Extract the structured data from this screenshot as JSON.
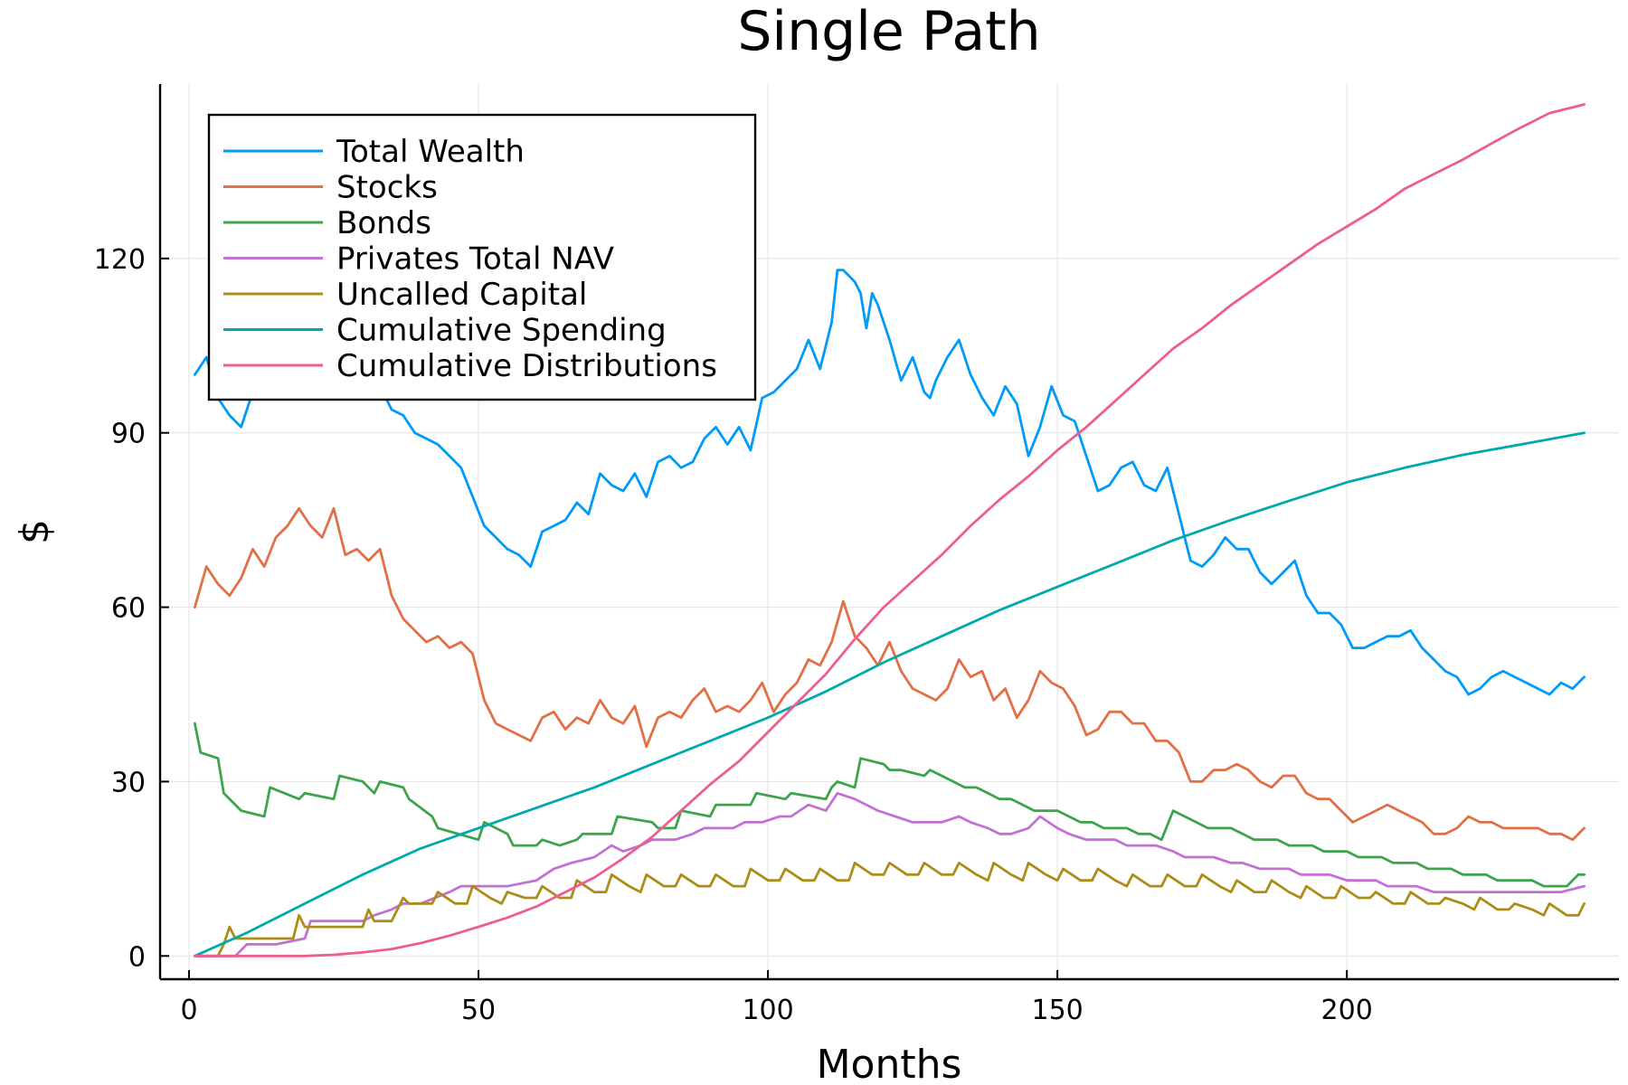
{
  "chart_data": {
    "type": "line",
    "title": "Single Path",
    "xlabel": "Months",
    "ylabel": "$",
    "xlim": [
      -5,
      247
    ],
    "ylim": [
      -4,
      150
    ],
    "xticks": [
      0,
      50,
      100,
      150,
      200
    ],
    "yticks": [
      0,
      30,
      60,
      90,
      120
    ],
    "grid": true,
    "legend_position": "top-left",
    "series": [
      {
        "name": "Total Wealth",
        "color": "#009af9",
        "x": [
          1,
          3,
          5,
          7,
          9,
          11,
          13,
          15,
          17,
          19,
          21,
          23,
          25,
          27,
          29,
          31,
          33,
          35,
          37,
          39,
          41,
          43,
          45,
          47,
          49,
          51,
          53,
          55,
          57,
          59,
          61,
          63,
          65,
          67,
          69,
          71,
          73,
          75,
          77,
          79,
          81,
          83,
          85,
          87,
          89,
          91,
          93,
          95,
          97,
          99,
          101,
          103,
          105,
          107,
          109,
          111,
          112,
          113,
          115,
          116,
          117,
          118,
          119,
          121,
          123,
          125,
          127,
          128,
          129,
          131,
          133,
          135,
          137,
          139,
          141,
          143,
          145,
          147,
          149,
          151,
          153,
          155,
          157,
          159,
          161,
          163,
          165,
          167,
          169,
          171,
          173,
          175,
          177,
          179,
          181,
          183,
          185,
          187,
          189,
          191,
          193,
          195,
          197,
          199,
          201,
          203,
          205,
          207,
          209,
          211,
          213,
          215,
          217,
          219,
          221,
          223,
          225,
          227,
          229,
          231,
          233,
          235,
          237,
          239,
          241
        ],
        "values": [
          100,
          103,
          96,
          93,
          91,
          97,
          99,
          98,
          97,
          99,
          100,
          99,
          98,
          99,
          98,
          97,
          98,
          94,
          93,
          90,
          89,
          88,
          86,
          84,
          79,
          74,
          72,
          70,
          69,
          67,
          73,
          74,
          75,
          78,
          76,
          83,
          81,
          80,
          83,
          79,
          85,
          86,
          84,
          85,
          89,
          91,
          88,
          91,
          87,
          96,
          97,
          99,
          101,
          106,
          101,
          109,
          118,
          118,
          116,
          114,
          108,
          114,
          112,
          106,
          99,
          103,
          97,
          96,
          99,
          103,
          106,
          100,
          96,
          93,
          98,
          95,
          86,
          91,
          98,
          93,
          92,
          86,
          80,
          81,
          84,
          85,
          81,
          80,
          84,
          76,
          68,
          67,
          69,
          72,
          70,
          70,
          66,
          64,
          66,
          68,
          62,
          59,
          59,
          57,
          53,
          53,
          54,
          55,
          55,
          56,
          53,
          51,
          49,
          48,
          45,
          46,
          48,
          49,
          48,
          47,
          46,
          45,
          47,
          46,
          48
        ]
      },
      {
        "name": "Stocks",
        "color": "#e26f46",
        "x": [
          1,
          3,
          5,
          7,
          9,
          11,
          13,
          15,
          17,
          19,
          21,
          23,
          25,
          27,
          29,
          31,
          33,
          35,
          37,
          39,
          41,
          43,
          45,
          47,
          49,
          51,
          53,
          55,
          57,
          59,
          61,
          63,
          65,
          67,
          69,
          71,
          73,
          75,
          77,
          79,
          81,
          83,
          85,
          87,
          89,
          91,
          93,
          95,
          97,
          99,
          101,
          103,
          105,
          107,
          109,
          111,
          113,
          115,
          117,
          119,
          121,
          123,
          125,
          127,
          129,
          131,
          133,
          135,
          137,
          139,
          141,
          143,
          145,
          147,
          149,
          151,
          153,
          155,
          157,
          159,
          161,
          163,
          165,
          167,
          169,
          171,
          173,
          175,
          177,
          179,
          181,
          183,
          185,
          187,
          189,
          191,
          193,
          195,
          197,
          199,
          201,
          203,
          205,
          207,
          209,
          211,
          213,
          215,
          217,
          219,
          221,
          223,
          225,
          227,
          229,
          231,
          233,
          235,
          237,
          239,
          241
        ],
        "values": [
          60,
          67,
          64,
          62,
          65,
          70,
          67,
          72,
          74,
          77,
          74,
          72,
          77,
          69,
          70,
          68,
          70,
          62,
          58,
          56,
          54,
          55,
          53,
          54,
          52,
          44,
          40,
          39,
          38,
          37,
          41,
          42,
          39,
          41,
          40,
          44,
          41,
          40,
          43,
          36,
          41,
          42,
          41,
          44,
          46,
          42,
          43,
          42,
          44,
          47,
          42,
          45,
          47,
          51,
          50,
          54,
          61,
          55,
          53,
          50,
          54,
          49,
          46,
          45,
          44,
          46,
          51,
          48,
          49,
          44,
          46,
          41,
          44,
          49,
          47,
          46,
          43,
          38,
          39,
          42,
          42,
          40,
          40,
          37,
          37,
          35,
          30,
          30,
          32,
          32,
          33,
          32,
          30,
          29,
          31,
          31,
          28,
          27,
          27,
          25,
          23,
          24,
          25,
          26,
          25,
          24,
          23,
          21,
          21,
          22,
          24,
          23,
          23,
          22,
          22,
          22,
          22,
          21,
          21,
          20,
          22
        ]
      },
      {
        "name": "Bonds",
        "color": "#3da44d",
        "x": [
          1,
          2,
          5,
          6,
          7,
          8,
          9,
          13,
          14,
          19,
          20,
          25,
          26,
          30,
          32,
          33,
          37,
          38,
          42,
          43,
          50,
          51,
          55,
          56,
          60,
          61,
          64,
          67,
          68,
          73,
          74,
          80,
          81,
          84,
          85,
          90,
          91,
          97,
          98,
          103,
          104,
          110,
          111,
          112,
          115,
          116,
          120,
          121,
          123,
          127,
          128,
          130,
          132,
          134,
          136,
          138,
          140,
          142,
          144,
          146,
          148,
          150,
          152,
          154,
          156,
          158,
          160,
          162,
          164,
          166,
          168,
          170,
          172,
          174,
          176,
          178,
          180,
          182,
          184,
          186,
          188,
          190,
          192,
          194,
          196,
          198,
          200,
          202,
          204,
          206,
          208,
          210,
          212,
          214,
          216,
          218,
          220,
          222,
          224,
          226,
          228,
          230,
          232,
          234,
          236,
          238,
          240,
          241
        ],
        "values": [
          40,
          35,
          34,
          28,
          27,
          26,
          25,
          24,
          29,
          27,
          28,
          27,
          31,
          30,
          28,
          30,
          29,
          27,
          24,
          22,
          20,
          23,
          21,
          19,
          19,
          20,
          19,
          20,
          21,
          21,
          24,
          23,
          22,
          22,
          25,
          24,
          26,
          26,
          28,
          27,
          28,
          27,
          29,
          30,
          29,
          34,
          33,
          32,
          32,
          31,
          32,
          31,
          30,
          29,
          29,
          28,
          27,
          27,
          26,
          25,
          25,
          25,
          24,
          23,
          23,
          22,
          22,
          22,
          21,
          21,
          20,
          25,
          24,
          23,
          22,
          22,
          22,
          21,
          20,
          20,
          20,
          19,
          19,
          19,
          18,
          18,
          18,
          17,
          17,
          17,
          16,
          16,
          16,
          15,
          15,
          15,
          14,
          14,
          14,
          13,
          13,
          13,
          13,
          12,
          12,
          12,
          14,
          14
        ]
      },
      {
        "name": "Privates Total NAV",
        "color": "#c271d2",
        "x": [
          1,
          5,
          8,
          10,
          15,
          20,
          21,
          25,
          30,
          32,
          35,
          37,
          40,
          45,
          47,
          50,
          55,
          60,
          63,
          66,
          70,
          73,
          75,
          78,
          80,
          84,
          87,
          89,
          92,
          94,
          96,
          99,
          102,
          104,
          107,
          110,
          112,
          115,
          117,
          119,
          122,
          125,
          127,
          130,
          133,
          135,
          138,
          140,
          142,
          145,
          147,
          150,
          152,
          155,
          157,
          160,
          162,
          165,
          167,
          170,
          172,
          175,
          177,
          180,
          182,
          185,
          187,
          190,
          192,
          195,
          197,
          200,
          202,
          205,
          207,
          210,
          212,
          215,
          217,
          220,
          222,
          225,
          227,
          230,
          232,
          235,
          237,
          241
        ],
        "values": [
          0,
          0,
          0,
          2,
          2,
          3,
          6,
          6,
          6,
          7,
          8,
          9,
          9,
          11,
          12,
          12,
          12,
          13,
          15,
          16,
          17,
          19,
          18,
          19,
          20,
          20,
          21,
          22,
          22,
          22,
          23,
          23,
          24,
          24,
          26,
          25,
          28,
          27,
          26,
          25,
          24,
          23,
          23,
          23,
          24,
          23,
          22,
          21,
          21,
          22,
          24,
          22,
          21,
          20,
          20,
          20,
          19,
          19,
          19,
          18,
          17,
          17,
          17,
          16,
          16,
          15,
          15,
          15,
          14,
          14,
          14,
          13,
          13,
          13,
          12,
          12,
          12,
          11,
          11,
          11,
          11,
          11,
          11,
          11,
          11,
          11,
          11,
          12
        ]
      },
      {
        "name": "Uncalled Capital",
        "color": "#ac8d18",
        "x": [
          1,
          5,
          6,
          7,
          8,
          11,
          14,
          18,
          19,
          20,
          23,
          26,
          30,
          31,
          32,
          35,
          37,
          38,
          42,
          43,
          46,
          48,
          49,
          52,
          54,
          55,
          58,
          60,
          61,
          64,
          66,
          67,
          70,
          72,
          73,
          76,
          78,
          79,
          82,
          84,
          85,
          88,
          90,
          91,
          94,
          96,
          97,
          100,
          102,
          103,
          106,
          108,
          109,
          112,
          114,
          115,
          118,
          120,
          121,
          124,
          126,
          127,
          130,
          132,
          133,
          136,
          138,
          139,
          142,
          144,
          145,
          148,
          150,
          151,
          154,
          156,
          157,
          160,
          162,
          163,
          166,
          168,
          169,
          172,
          174,
          175,
          178,
          180,
          181,
          184,
          186,
          187,
          190,
          192,
          193,
          196,
          198,
          199,
          202,
          204,
          205,
          208,
          210,
          211,
          214,
          216,
          217,
          220,
          222,
          223,
          226,
          228,
          229,
          232,
          234,
          235,
          238,
          240,
          241
        ],
        "values": [
          0,
          0,
          2,
          5,
          3,
          3,
          3,
          3,
          7,
          5,
          5,
          5,
          5,
          8,
          6,
          6,
          10,
          9,
          9,
          11,
          9,
          9,
          12,
          10,
          9,
          11,
          10,
          10,
          12,
          10,
          10,
          13,
          11,
          11,
          14,
          12,
          11,
          14,
          12,
          12,
          14,
          12,
          12,
          14,
          12,
          12,
          15,
          13,
          13,
          15,
          13,
          13,
          15,
          13,
          13,
          16,
          14,
          14,
          16,
          14,
          14,
          16,
          14,
          14,
          16,
          14,
          13,
          16,
          14,
          13,
          16,
          14,
          13,
          15,
          13,
          13,
          15,
          13,
          12,
          14,
          12,
          12,
          14,
          12,
          12,
          14,
          12,
          11,
          13,
          11,
          11,
          13,
          11,
          10,
          12,
          10,
          10,
          12,
          10,
          10,
          11,
          9,
          9,
          11,
          9,
          9,
          10,
          9,
          8,
          10,
          8,
          8,
          9,
          8,
          7,
          9,
          7,
          7,
          9
        ]
      },
      {
        "name": "Cumulative Spending",
        "color": "#00a9ad",
        "x": [
          1,
          10,
          20,
          30,
          40,
          50,
          60,
          70,
          80,
          90,
          100,
          110,
          120,
          130,
          140,
          150,
          160,
          170,
          180,
          190,
          200,
          210,
          220,
          230,
          241
        ],
        "values": [
          0,
          4,
          9,
          14,
          18.5,
          22,
          25.5,
          29,
          33,
          37,
          41,
          45.5,
          50.5,
          55,
          59.5,
          63.5,
          67.5,
          71.5,
          75,
          78.3,
          81.5,
          84,
          86.2,
          88,
          90
        ]
      },
      {
        "name": "Cumulative Distributions",
        "color": "#ed5d92",
        "x": [
          1,
          10,
          20,
          25,
          30,
          35,
          40,
          45,
          50,
          55,
          60,
          65,
          70,
          75,
          80,
          85,
          90,
          95,
          100,
          105,
          110,
          115,
          120,
          125,
          130,
          135,
          140,
          145,
          150,
          155,
          160,
          165,
          170,
          175,
          180,
          185,
          190,
          195,
          200,
          205,
          210,
          215,
          220,
          225,
          230,
          235,
          241
        ],
        "values": [
          0,
          0,
          0,
          0.2,
          0.6,
          1.2,
          2.2,
          3.5,
          5,
          6.6,
          8.5,
          11,
          13.5,
          16.8,
          20.5,
          25,
          29.5,
          33.5,
          38.5,
          43.5,
          48.5,
          54.5,
          60,
          64.5,
          69,
          74,
          78.5,
          82.5,
          87,
          91,
          95.5,
          100,
          104.5,
          108,
          112,
          115.5,
          119,
          122.5,
          125.5,
          128.5,
          132,
          134.5,
          137,
          139.8,
          142.5,
          145,
          146.5
        ]
      }
    ]
  }
}
